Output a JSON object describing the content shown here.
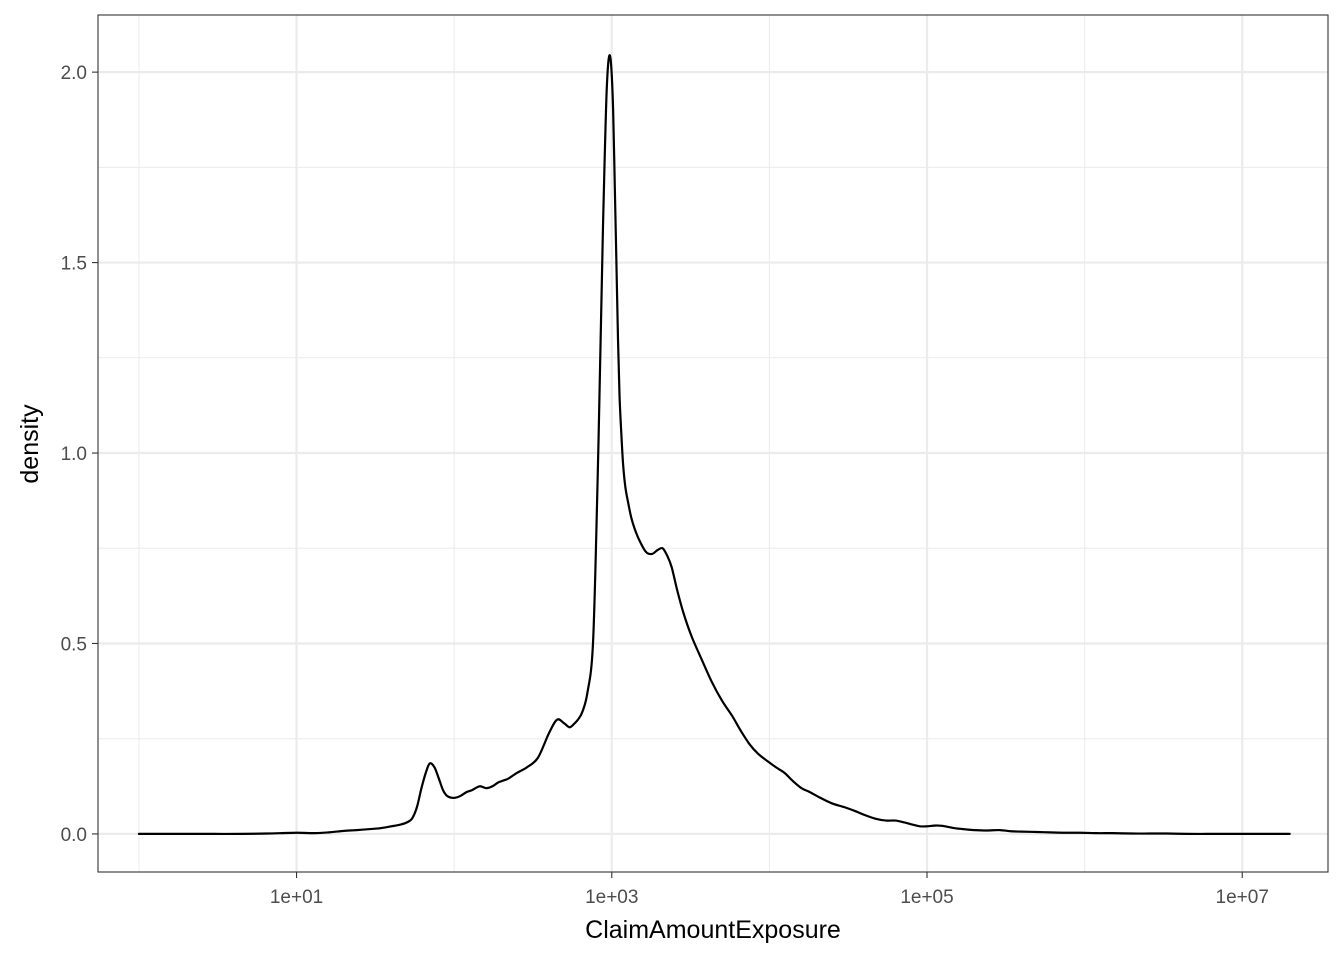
{
  "chart_data": {
    "type": "line",
    "title": "",
    "xlabel": "ClaimAmountExposure",
    "ylabel": "density",
    "x_scale": "log10",
    "xlim": [
      0.55,
      35000000
    ],
    "ylim": [
      -0.1,
      2.15
    ],
    "x_ticks": [
      {
        "value": 10,
        "label": "1e+01"
      },
      {
        "value": 1000,
        "label": "1e+03"
      },
      {
        "value": 100000,
        "label": "1e+05"
      },
      {
        "value": 10000000,
        "label": "1e+07"
      }
    ],
    "x_minor_ticks": [
      1,
      100,
      10000,
      1000000
    ],
    "y_ticks": [
      {
        "value": 0.0,
        "label": "0.0"
      },
      {
        "value": 0.5,
        "label": "0.5"
      },
      {
        "value": 1.0,
        "label": "1.0"
      },
      {
        "value": 1.5,
        "label": "1.5"
      },
      {
        "value": 2.0,
        "label": "2.0"
      }
    ],
    "y_minor_ticks": [
      0.25,
      0.75,
      1.25,
      1.75
    ],
    "grid": true,
    "line_color": "#000000",
    "series": [
      {
        "x": [
          1.0,
          1.5,
          2.0,
          3.0,
          4.5,
          6.5,
          10.0,
          13.0,
          16.0,
          20.0,
          24.0,
          28.0,
          34.0,
          40.0,
          46.0,
          50.0,
          54.0,
          58.0,
          62.0,
          66.0,
          70.0,
          75.0,
          80.0,
          85.0,
          90.0,
          96.0,
          102.0,
          110.0,
          120.0,
          130.0,
          145.0,
          160.0,
          175.0,
          190.0,
          205.0,
          220.0,
          250.0,
          290.0,
          340.0,
          400.0,
          450.0,
          500.0,
          540.0,
          580.0,
          610.0,
          650.0,
          700.0,
          760.0,
          810.0,
          850.0,
          880.0,
          905.0,
          930.0,
          960.0,
          990.0,
          1020.0,
          1045.0,
          1070.0,
          1095.0,
          1120.0,
          1150.0,
          1180.0,
          1220.0,
          1270.0,
          1330.0,
          1400.0,
          1500.0,
          1650.0,
          1800.0,
          1950.0,
          2100.0,
          2250.0,
          2400.0,
          2600.0,
          2850.0,
          3200.0,
          3700.0,
          4300.0,
          5000.0,
          5800.0,
          6600.0,
          7500.0,
          8500.0,
          9800.0,
          11000.0,
          12500.0,
          14000.0,
          16000.0,
          18000.0,
          21000.0,
          25000.0,
          30000.0,
          35000.0,
          40000.0,
          47000.0,
          55000.0,
          63000.0,
          72000.0,
          80000.0,
          90000.0,
          100000.0,
          115000.0,
          130000.0,
          150000.0,
          175000.0,
          200000.0,
          240000.0,
          290000.0,
          340000.0,
          400000.0,
          500000.0,
          600000.0,
          750000.0,
          950000.0,
          1200000.0,
          1500000.0,
          2000000.0,
          2600000.0,
          3300000.0,
          4500000.0,
          6000000.0,
          8000000.0,
          10000000.0,
          13000000.0,
          17000000.0,
          20000000.0
        ],
        "y": [
          0.0,
          0.0,
          0.0,
          0.0,
          0.0,
          0.001,
          0.003,
          0.002,
          0.004,
          0.008,
          0.01,
          0.012,
          0.015,
          0.02,
          0.025,
          0.03,
          0.04,
          0.07,
          0.12,
          0.16,
          0.185,
          0.175,
          0.145,
          0.115,
          0.1,
          0.095,
          0.095,
          0.1,
          0.11,
          0.115,
          0.125,
          0.12,
          0.125,
          0.135,
          0.14,
          0.145,
          0.16,
          0.175,
          0.2,
          0.265,
          0.3,
          0.29,
          0.28,
          0.29,
          0.3,
          0.32,
          0.37,
          0.5,
          0.9,
          1.3,
          1.6,
          1.8,
          1.96,
          2.04,
          2.02,
          1.9,
          1.7,
          1.5,
          1.3,
          1.15,
          1.05,
          0.97,
          0.91,
          0.87,
          0.83,
          0.8,
          0.77,
          0.74,
          0.735,
          0.745,
          0.75,
          0.73,
          0.7,
          0.64,
          0.58,
          0.52,
          0.46,
          0.4,
          0.35,
          0.31,
          0.27,
          0.235,
          0.21,
          0.19,
          0.175,
          0.16,
          0.14,
          0.12,
          0.11,
          0.095,
          0.08,
          0.07,
          0.06,
          0.05,
          0.04,
          0.035,
          0.035,
          0.03,
          0.025,
          0.02,
          0.02,
          0.022,
          0.02,
          0.015,
          0.012,
          0.01,
          0.009,
          0.01,
          0.007,
          0.006,
          0.005,
          0.004,
          0.003,
          0.003,
          0.002,
          0.002,
          0.001,
          0.001,
          0.001,
          0.0,
          0.0,
          0.0,
          0.0,
          0.0,
          0.0,
          0.0
        ]
      }
    ]
  }
}
